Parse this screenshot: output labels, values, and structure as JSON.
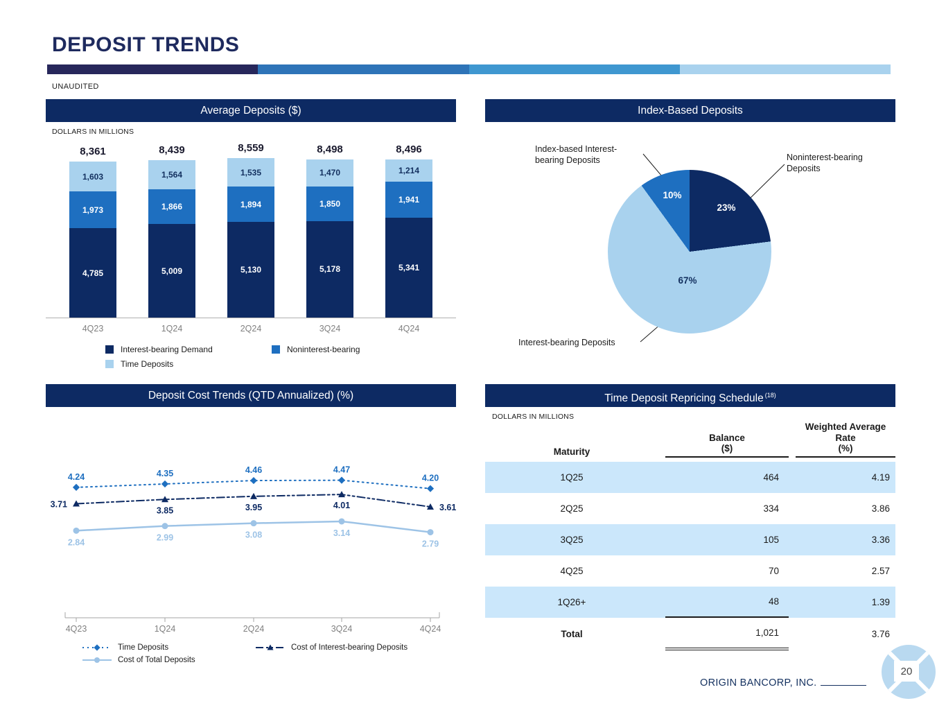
{
  "page": {
    "title": "DEPOSIT TRENDS",
    "unaudited": "UNAUDITED",
    "footer": "ORIGIN BANCORP, INC.",
    "page_number": "20"
  },
  "panels": {
    "avg_deposits": {
      "header": "Average Deposits ($)",
      "units": "DOLLARS IN MILLIONS"
    },
    "index_deposits": {
      "header": "Index-Based Deposits"
    },
    "cost_trends": {
      "header": "Deposit Cost Trends (QTD Annualized) (%)"
    },
    "repricing": {
      "header": "Time Deposit Repricing Schedule",
      "header_superscript": "(18)",
      "units": "DOLLARS IN MILLIONS"
    }
  },
  "colors": {
    "navy": "#0d2a63",
    "medium_blue": "#1e6fc0",
    "light_blue": "#a9d2ee",
    "light_line": "#9dc3e6",
    "row_highlight": "#cbe7fb",
    "accent_bar": [
      "#27275b",
      "#2e74b8",
      "#3f97d0",
      "#a9d2ee"
    ]
  },
  "chart_data": [
    {
      "type": "bar",
      "subtype": "stacked",
      "title": "Average Deposits ($)",
      "units": "DOLLARS IN MILLIONS",
      "categories": [
        "4Q23",
        "1Q24",
        "2Q24",
        "3Q24",
        "4Q24"
      ],
      "series": [
        {
          "name": "Interest-bearing Demand",
          "color": "#0d2a63",
          "values": [
            4785,
            5009,
            5130,
            5178,
            5341
          ]
        },
        {
          "name": "Noninterest-bearing",
          "color": "#1e6fc0",
          "values": [
            1973,
            1866,
            1894,
            1850,
            1941
          ]
        },
        {
          "name": "Time Deposits",
          "color": "#a9d2ee",
          "values": [
            1603,
            1564,
            1535,
            1470,
            1214
          ]
        }
      ],
      "totals": [
        8361,
        8439,
        8559,
        8498,
        8496
      ],
      "ylim": [
        0,
        9000
      ],
      "legend_position": "bottom"
    },
    {
      "type": "pie",
      "title": "Index-Based Deposits",
      "slices": [
        {
          "label": "Noninterest-bearing Deposits",
          "value": 23,
          "pct": "23%",
          "color": "#0d2a63"
        },
        {
          "label": "Interest-bearing Deposits",
          "value": 67,
          "pct": "67%",
          "color": "#a9d2ee"
        },
        {
          "label": "Index-based Interest-bearing Deposits",
          "value": 10,
          "pct": "10%",
          "color": "#1e6fc0"
        }
      ]
    },
    {
      "type": "line",
      "title": "Deposit Cost Trends (QTD Annualized) (%)",
      "categories": [
        "4Q23",
        "1Q24",
        "2Q24",
        "3Q24",
        "4Q24"
      ],
      "series": [
        {
          "name": "Time Deposits",
          "color": "#1e6fc0",
          "line_style": "dotted",
          "marker": "diamond",
          "values": [
            4.24,
            4.35,
            4.46,
            4.47,
            4.2
          ]
        },
        {
          "name": "Cost of Interest-bearing Deposits",
          "color": "#0d2a63",
          "line_style": "dashdot",
          "marker": "triangle",
          "values": [
            3.71,
            3.85,
            3.95,
            4.01,
            3.61
          ]
        },
        {
          "name": "Cost of Total Deposits",
          "color": "#9dc3e6",
          "line_style": "solid",
          "marker": "circle",
          "values": [
            2.84,
            2.99,
            3.08,
            3.14,
            2.79
          ]
        }
      ],
      "ylim": [
        2.5,
        5.0
      ],
      "legend_position": "bottom"
    },
    {
      "type": "table",
      "title": "Time Deposit Repricing Schedule (18)",
      "columns": [
        "Maturity",
        "Balance ($)",
        "Weighted Average Rate (%)"
      ],
      "column_header_lines": [
        [
          "Maturity"
        ],
        [
          "Balance",
          "($)"
        ],
        [
          "Weighted Average",
          "Rate",
          "(%)"
        ]
      ],
      "rows": [
        [
          "1Q25",
          "464",
          "4.19"
        ],
        [
          "2Q25",
          "334",
          "3.86"
        ],
        [
          "3Q25",
          "105",
          "3.36"
        ],
        [
          "4Q25",
          "70",
          "2.57"
        ],
        [
          "1Q26+",
          "48",
          "1.39"
        ]
      ],
      "total_row": [
        "Total",
        "1,021",
        "3.76"
      ],
      "highlight_color": "#cbe7fb"
    }
  ]
}
